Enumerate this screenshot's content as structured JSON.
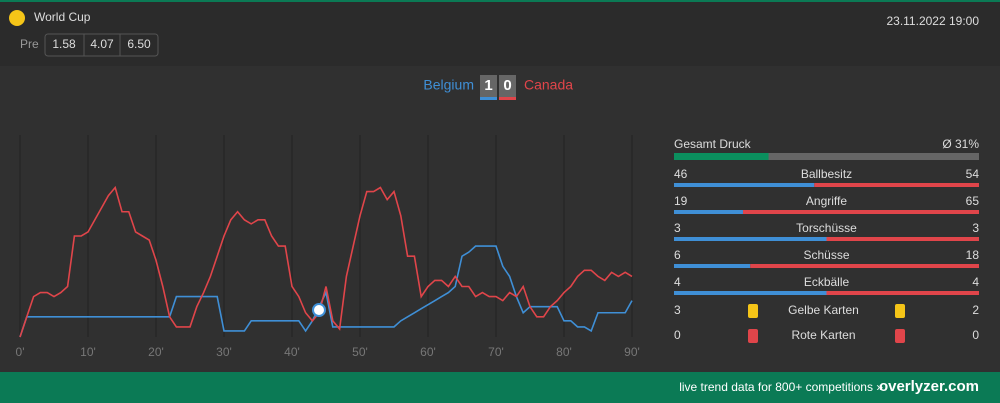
{
  "header": {
    "competition": "World Cup",
    "pre_label": "Pre",
    "odds": [
      "1.58",
      "4.07",
      "6.50"
    ],
    "datetime": "23.11.2022 19:00"
  },
  "score": {
    "home": "Belgium",
    "home_goals": "1",
    "away_goals": "0",
    "away": "Canada"
  },
  "chart_data": {
    "type": "line",
    "x": [
      0,
      1,
      2,
      3,
      4,
      5,
      6,
      7,
      8,
      9,
      10,
      11,
      12,
      13,
      14,
      15,
      16,
      17,
      18,
      19,
      20,
      21,
      22,
      23,
      24,
      25,
      26,
      27,
      28,
      29,
      30,
      31,
      32,
      33,
      34,
      35,
      36,
      37,
      38,
      39,
      40,
      41,
      42,
      43,
      44,
      45,
      46,
      47,
      48,
      49,
      50,
      51,
      52,
      53,
      54,
      55,
      56,
      57,
      58,
      59,
      60,
      61,
      62,
      63,
      64,
      65,
      66,
      67,
      68,
      69,
      70,
      71,
      72,
      73,
      74,
      75,
      76,
      77,
      78,
      79,
      80,
      81,
      82,
      83,
      84,
      85,
      86,
      87,
      88,
      89,
      90
    ],
    "series": [
      {
        "name": "Belgium",
        "color": "#3f8fd6",
        "values": [
          0,
          10,
          10,
          10,
          10,
          10,
          10,
          10,
          10,
          10,
          10,
          10,
          10,
          10,
          10,
          10,
          10,
          10,
          10,
          10,
          10,
          10,
          10,
          20,
          20,
          20,
          20,
          20,
          20,
          20,
          3,
          3,
          3,
          3,
          8,
          8,
          8,
          8,
          8,
          8,
          8,
          8,
          3,
          8,
          15,
          22,
          5,
          5,
          5,
          5,
          5,
          5,
          5,
          5,
          5,
          5,
          8,
          10,
          12,
          14,
          16,
          18,
          20,
          22,
          25,
          40,
          42,
          45,
          45,
          45,
          45,
          35,
          30,
          20,
          12,
          15,
          15,
          15,
          15,
          15,
          8,
          8,
          5,
          5,
          3,
          12,
          12,
          12,
          12,
          12,
          18
        ]
      },
      {
        "name": "Canada",
        "color": "#e0454a",
        "values": [
          0,
          10,
          20,
          22,
          22,
          20,
          22,
          25,
          50,
          50,
          52,
          58,
          64,
          70,
          74,
          62,
          62,
          52,
          50,
          48,
          38,
          25,
          10,
          5,
          5,
          5,
          15,
          22,
          30,
          40,
          50,
          58,
          62,
          58,
          56,
          58,
          58,
          50,
          45,
          45,
          25,
          20,
          12,
          8,
          12,
          25,
          8,
          4,
          30,
          45,
          60,
          72,
          72,
          74,
          68,
          72,
          60,
          40,
          40,
          20,
          25,
          28,
          28,
          25,
          30,
          25,
          25,
          20,
          22,
          20,
          20,
          18,
          22,
          20,
          25,
          15,
          10,
          10,
          15,
          18,
          22,
          25,
          30,
          33,
          33,
          30,
          28,
          32,
          30,
          32,
          30
        ]
      }
    ],
    "xlim": [
      0,
      90
    ],
    "ylim": [
      0,
      100
    ],
    "xticks": [
      {
        "value": 0,
        "label": "0'"
      },
      {
        "value": 10,
        "label": "10'"
      },
      {
        "value": 20,
        "label": "20'"
      },
      {
        "value": 30,
        "label": "30'"
      },
      {
        "value": 40,
        "label": "40'"
      },
      {
        "value": 50,
        "label": "50'"
      },
      {
        "value": 60,
        "label": "60'"
      },
      {
        "value": 70,
        "label": "70'"
      },
      {
        "value": 80,
        "label": "80'"
      },
      {
        "value": 90,
        "label": "90'"
      }
    ],
    "grid": true
  },
  "pressure": {
    "label": "Gesamt Druck",
    "value": 31,
    "value_label": "Ø 31%"
  },
  "stats": [
    {
      "label": "Ballbesitz",
      "home": 46,
      "away": 54
    },
    {
      "label": "Angriffe",
      "home": 19,
      "away": 65
    },
    {
      "label": "Torschüsse",
      "home": 3,
      "away": 3
    },
    {
      "label": "Schüsse",
      "home": 6,
      "away": 18
    },
    {
      "label": "Eckbälle",
      "home": 4,
      "away": 4
    }
  ],
  "cards": [
    {
      "label": "Gelbe Karten",
      "home": 3,
      "away": 2,
      "color": "#f5c518"
    },
    {
      "label": "Rote Karten",
      "home": 0,
      "away": 0,
      "color": "#e0454a"
    }
  ],
  "footer": {
    "text": "live trend data for 800+ competitions »",
    "brand": "overlyzer.com"
  }
}
